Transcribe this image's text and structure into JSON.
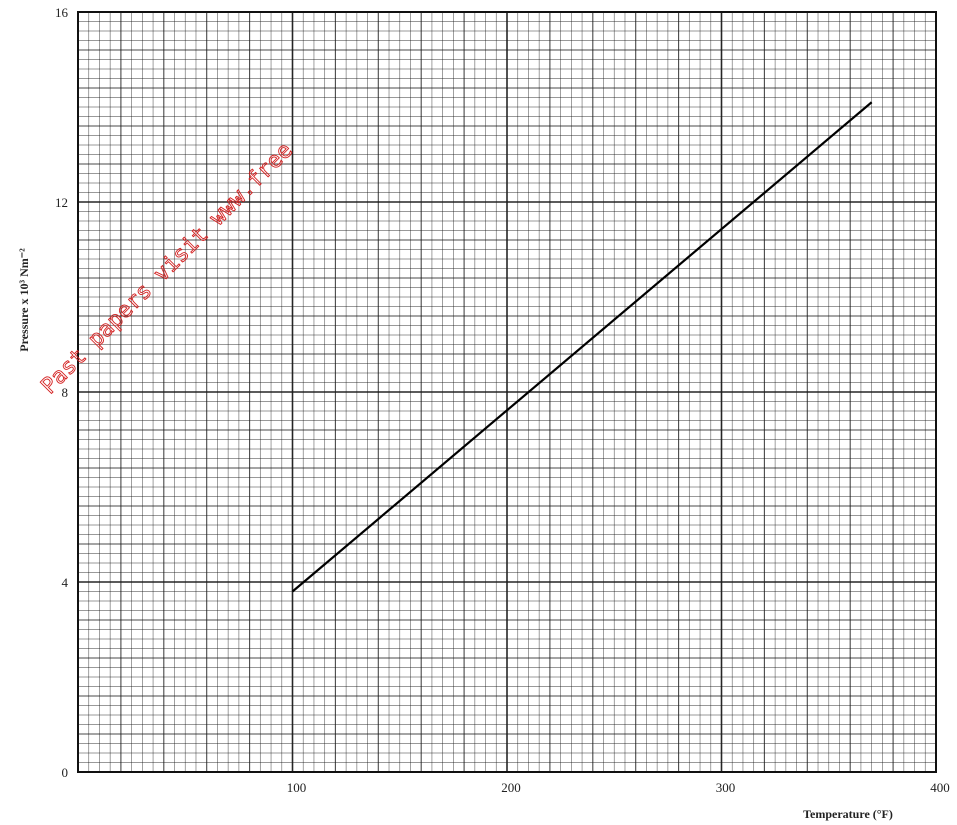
{
  "chart_data": {
    "type": "line",
    "title": "",
    "xlabel": "Temperature (°F)",
    "ylabel": "Pressure x 10³ Nm⁻²",
    "xlim": [
      0,
      400
    ],
    "ylim": [
      0,
      16
    ],
    "x_ticks": [
      "100",
      "200",
      "300",
      "400"
    ],
    "y_ticks": [
      "0",
      "4",
      "8",
      "12",
      "16"
    ],
    "grid": true,
    "series": [
      {
        "x": [
          100,
          370
        ],
        "y": [
          3.8,
          14.1
        ]
      }
    ]
  },
  "watermark": {
    "text": "Past papers visit www.free"
  },
  "colors": {
    "grid": "#1a1a1a",
    "line": "#000000",
    "watermark": "#d42020"
  }
}
